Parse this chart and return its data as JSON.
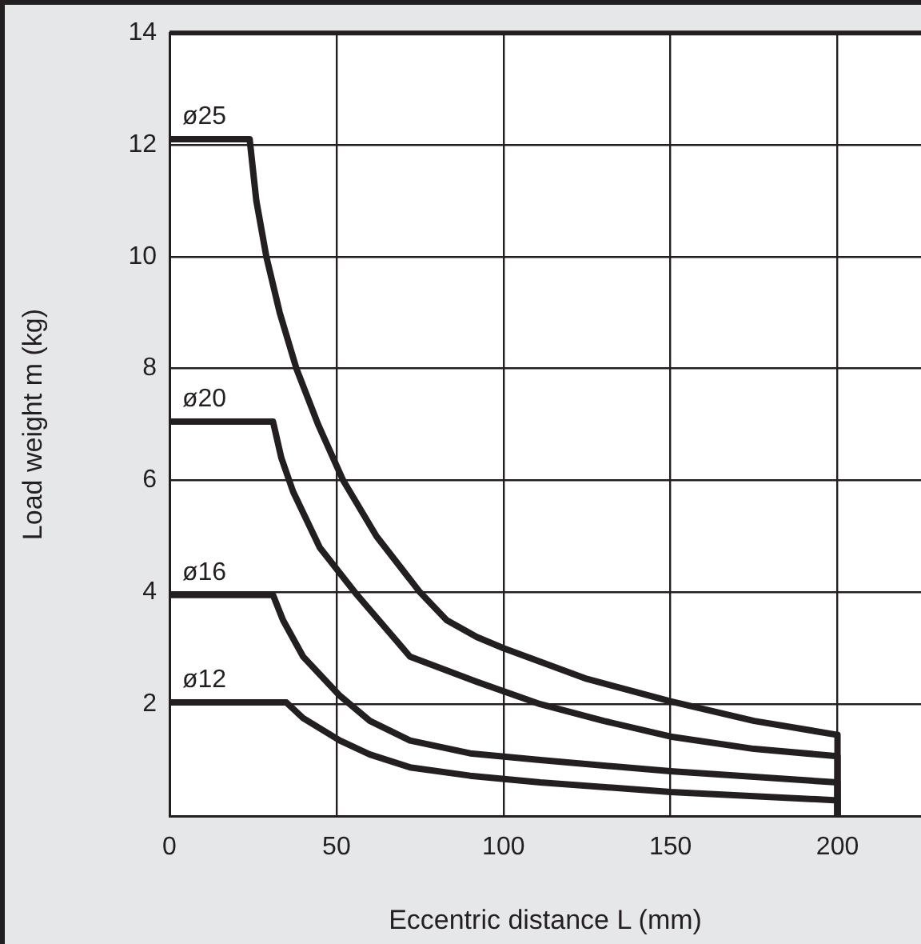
{
  "chart_data": {
    "type": "line",
    "xlabel": "Eccentric distance L (mm)",
    "ylabel": "Load weight m (kg)",
    "xlim": [
      0,
      225
    ],
    "xticks": [
      0,
      50,
      100,
      150,
      200
    ],
    "ylim": [
      0,
      14
    ],
    "yticks": [
      2,
      4,
      6,
      8,
      10,
      12,
      14
    ],
    "grid": true,
    "legend": false,
    "marker": "none",
    "line_style": "solid",
    "series": [
      {
        "name": "ø25",
        "color": "#231f20",
        "x": [
          0,
          24,
          26,
          29,
          33,
          38,
          44.5,
          52,
          62,
          75,
          83,
          92,
          100,
          125,
          150,
          175,
          200,
          200
        ],
        "values": [
          12.1,
          12.1,
          11,
          10,
          9,
          8,
          7,
          6,
          5,
          4,
          3.5,
          3.2,
          3.0,
          2.45,
          2.05,
          1.7,
          1.45,
          0
        ]
      },
      {
        "name": "ø20",
        "color": "#231f20",
        "x": [
          0,
          31,
          33.5,
          37,
          45,
          55.5,
          72,
          92,
          111,
          130,
          150,
          175,
          200,
          200
        ],
        "values": [
          7.05,
          7.05,
          6.4,
          5.8,
          4.8,
          4,
          2.85,
          2.4,
          2.0,
          1.7,
          1.42,
          1.2,
          1.07,
          0
        ]
      },
      {
        "name": "ø16",
        "color": "#231f20",
        "x": [
          0,
          31,
          34,
          40,
          51,
          60,
          72,
          90,
          111,
          150,
          200,
          200
        ],
        "values": [
          3.95,
          3.95,
          3.5,
          2.85,
          2.15,
          1.7,
          1.35,
          1.12,
          1.0,
          0.8,
          0.6,
          0
        ]
      },
      {
        "name": "ø12",
        "color": "#231f20",
        "x": [
          0,
          35,
          40,
          51,
          60,
          72,
          90,
          111,
          150,
          200,
          200
        ],
        "values": [
          2.03,
          2.03,
          1.75,
          1.35,
          1.1,
          0.87,
          0.72,
          0.6,
          0.43,
          0.28,
          0
        ]
      }
    ]
  }
}
